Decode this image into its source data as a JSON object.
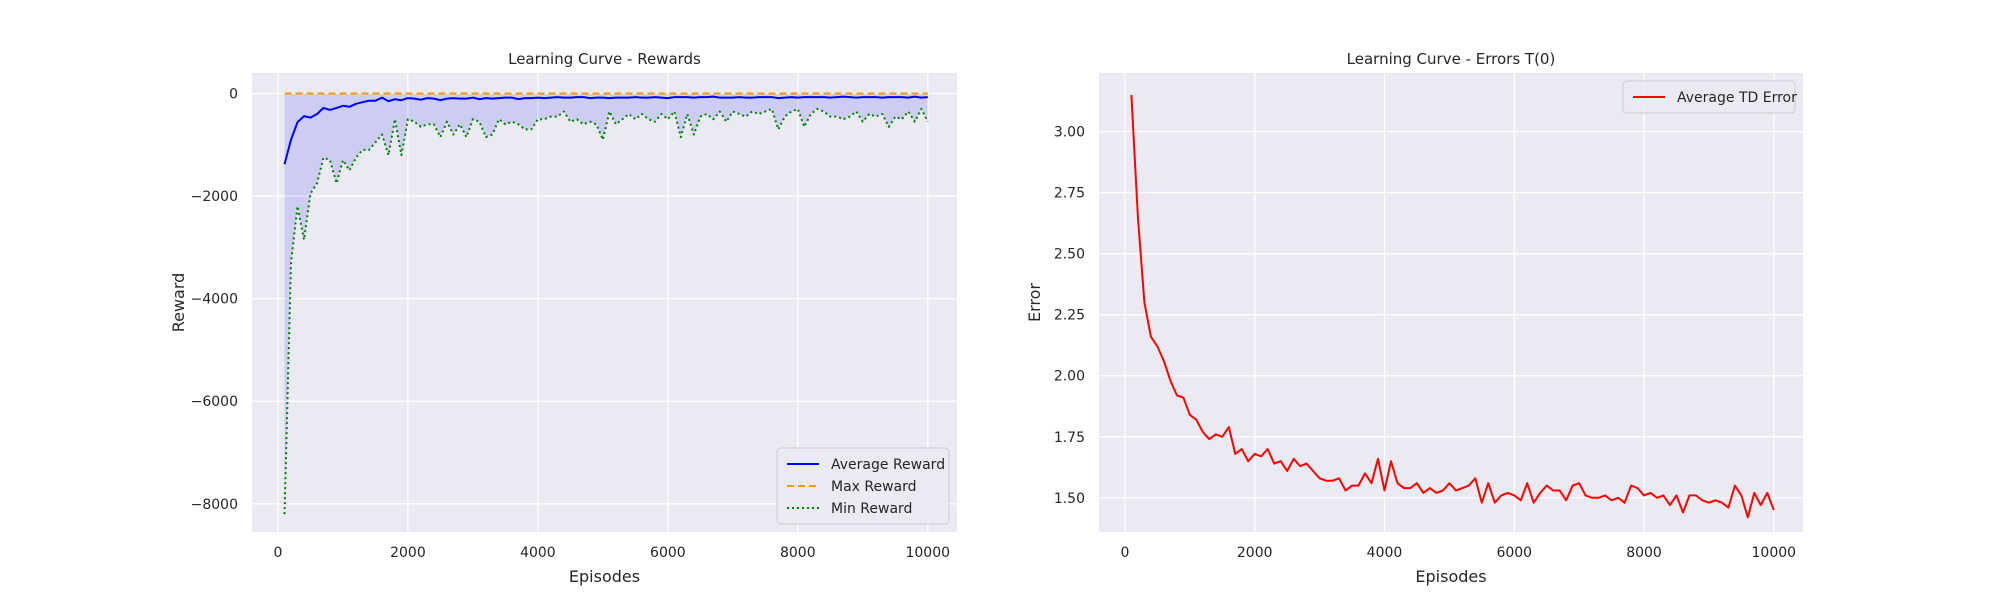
{
  "chart_data": [
    {
      "type": "line",
      "title": "Learning Curve - Rewards",
      "xlabel": "Episodes",
      "ylabel": "Reward",
      "xlim": [
        -400,
        10450
      ],
      "ylim": [
        -8550,
        400
      ],
      "xticks": [
        0,
        2000,
        4000,
        6000,
        8000,
        10000
      ],
      "xtick_labels": [
        "0",
        "2000",
        "4000",
        "6000",
        "8000",
        "10000"
      ],
      "yticks": [
        0,
        -2000,
        -4000,
        -6000,
        -8000
      ],
      "ytick_labels": [
        "0",
        "−2000",
        "−4000",
        "−6000",
        "−8000"
      ],
      "grid": true,
      "legend_position": "lower-right",
      "fill_between": {
        "lower": "Min Reward",
        "upper": "Max Reward",
        "color": "#0000ff",
        "opacity": 0.12
      },
      "x": [
        100,
        200,
        300,
        400,
        500,
        600,
        700,
        800,
        900,
        1000,
        1100,
        1200,
        1300,
        1400,
        1500,
        1600,
        1700,
        1800,
        1900,
        2000,
        2100,
        2200,
        2300,
        2400,
        2500,
        2600,
        2700,
        2800,
        2900,
        3000,
        3100,
        3200,
        3300,
        3400,
        3500,
        3600,
        3700,
        3800,
        3900,
        4000,
        4100,
        4200,
        4300,
        4400,
        4500,
        4600,
        4700,
        4800,
        4900,
        5000,
        5100,
        5200,
        5300,
        5400,
        5500,
        5600,
        5700,
        5800,
        5900,
        6000,
        6100,
        6200,
        6300,
        6400,
        6500,
        6600,
        6700,
        6800,
        6900,
        7000,
        7100,
        7200,
        7300,
        7400,
        7500,
        7600,
        7700,
        7800,
        7900,
        8000,
        8100,
        8200,
        8300,
        8400,
        8500,
        8600,
        8700,
        8800,
        8900,
        9000,
        9100,
        9200,
        9300,
        9400,
        9500,
        9600,
        9700,
        9800,
        9900,
        10000
      ],
      "series": [
        {
          "name": "Average Reward",
          "color": "#0000ff",
          "dash": "solid",
          "values": [
            -1380,
            -900,
            -560,
            -440,
            -470,
            -400,
            -280,
            -320,
            -280,
            -240,
            -260,
            -200,
            -170,
            -140,
            -140,
            -80,
            -150,
            -110,
            -130,
            -90,
            -100,
            -120,
            -90,
            -100,
            -130,
            -100,
            -90,
            -100,
            -100,
            -80,
            -110,
            -90,
            -100,
            -90,
            -80,
            -80,
            -110,
            -90,
            -90,
            -80,
            -90,
            -80,
            -70,
            -80,
            -80,
            -70,
            -70,
            -90,
            -80,
            -80,
            -90,
            -80,
            -80,
            -80,
            -70,
            -80,
            -80,
            -70,
            -80,
            -90,
            -70,
            -70,
            -70,
            -80,
            -70,
            -70,
            -60,
            -80,
            -80,
            -80,
            -70,
            -80,
            -80,
            -70,
            -70,
            -70,
            -90,
            -80,
            -70,
            -80,
            -70,
            -70,
            -70,
            -70,
            -80,
            -70,
            -60,
            -70,
            -80,
            -70,
            -70,
            -70,
            -80,
            -70,
            -70,
            -70,
            -80,
            -60,
            -80,
            -70
          ]
        },
        {
          "name": "Max Reward",
          "color": "#ff9900",
          "dash": "dashed",
          "values": [
            0,
            0,
            0,
            0,
            0,
            0,
            0,
            0,
            0,
            0,
            0,
            0,
            0,
            0,
            0,
            0,
            0,
            0,
            0,
            0,
            0,
            0,
            0,
            0,
            0,
            0,
            0,
            0,
            0,
            0,
            0,
            0,
            0,
            0,
            0,
            0,
            0,
            0,
            0,
            0,
            0,
            0,
            0,
            0,
            0,
            0,
            0,
            0,
            0,
            0,
            0,
            0,
            0,
            0,
            0,
            0,
            0,
            0,
            0,
            0,
            0,
            0,
            0,
            0,
            0,
            0,
            0,
            0,
            0,
            0,
            0,
            0,
            0,
            0,
            0,
            0,
            0,
            0,
            0,
            0,
            0,
            0,
            0,
            0,
            0,
            0,
            0,
            0,
            0,
            0,
            0,
            0,
            0,
            0,
            0,
            0,
            0,
            0,
            0,
            0
          ]
        },
        {
          "name": "Min Reward",
          "color": "#008000",
          "dash": "dotted",
          "values": [
            -8200,
            -3300,
            -2200,
            -2850,
            -1950,
            -1750,
            -1250,
            -1300,
            -1750,
            -1300,
            -1500,
            -1250,
            -1100,
            -1100,
            -950,
            -800,
            -1200,
            -500,
            -1200,
            -500,
            -550,
            -650,
            -600,
            -600,
            -850,
            -550,
            -800,
            -600,
            -850,
            -500,
            -550,
            -850,
            -800,
            -500,
            -600,
            -550,
            -600,
            -700,
            -700,
            -500,
            -500,
            -450,
            -450,
            -350,
            -550,
            -500,
            -600,
            -550,
            -600,
            -900,
            -350,
            -600,
            -500,
            -400,
            -500,
            -400,
            -500,
            -550,
            -400,
            -500,
            -350,
            -850,
            -400,
            -800,
            -450,
            -400,
            -500,
            -350,
            -550,
            -350,
            -400,
            -450,
            -350,
            -400,
            -350,
            -300,
            -700,
            -450,
            -350,
            -300,
            -650,
            -400,
            -300,
            -350,
            -450,
            -450,
            -500,
            -450,
            -350,
            -550,
            -400,
            -450,
            -400,
            -650,
            -450,
            -500,
            -350,
            -550,
            -300,
            -550
          ]
        }
      ]
    },
    {
      "type": "line",
      "title": "Learning Curve - Errors T(0)",
      "xlabel": "Episodes",
      "ylabel": "Error",
      "xlim": [
        -400,
        10450
      ],
      "ylim": [
        1.36,
        3.24
      ],
      "xticks": [
        0,
        2000,
        4000,
        6000,
        8000,
        10000
      ],
      "xtick_labels": [
        "0",
        "2000",
        "4000",
        "6000",
        "8000",
        "10000"
      ],
      "yticks": [
        1.5,
        1.75,
        2.0,
        2.25,
        2.5,
        2.75,
        3.0
      ],
      "ytick_labels": [
        "1.50",
        "1.75",
        "2.00",
        "2.25",
        "2.50",
        "2.75",
        "3.00"
      ],
      "grid": true,
      "legend_position": "top-right",
      "x": [
        100,
        200,
        300,
        400,
        500,
        600,
        700,
        800,
        900,
        1000,
        1100,
        1200,
        1300,
        1400,
        1500,
        1600,
        1700,
        1800,
        1900,
        2000,
        2100,
        2200,
        2300,
        2400,
        2500,
        2600,
        2700,
        2800,
        2900,
        3000,
        3100,
        3200,
        3300,
        3400,
        3500,
        3600,
        3700,
        3800,
        3900,
        4000,
        4100,
        4200,
        4300,
        4400,
        4500,
        4600,
        4700,
        4800,
        4900,
        5000,
        5100,
        5200,
        5300,
        5400,
        5500,
        5600,
        5700,
        5800,
        5900,
        6000,
        6100,
        6200,
        6300,
        6400,
        6500,
        6600,
        6700,
        6800,
        6900,
        7000,
        7100,
        7200,
        7300,
        7400,
        7500,
        7600,
        7700,
        7800,
        7900,
        8000,
        8100,
        8200,
        8300,
        8400,
        8500,
        8600,
        8700,
        8800,
        8900,
        9000,
        9100,
        9200,
        9300,
        9400,
        9500,
        9600,
        9700,
        9800,
        9900,
        10000
      ],
      "series": [
        {
          "name": "Average TD Error",
          "color": "#ff0000",
          "dash": "solid",
          "values": [
            3.15,
            2.65,
            2.3,
            2.16,
            2.12,
            2.06,
            1.98,
            1.92,
            1.91,
            1.84,
            1.82,
            1.77,
            1.74,
            1.76,
            1.75,
            1.79,
            1.68,
            1.7,
            1.65,
            1.68,
            1.67,
            1.7,
            1.64,
            1.65,
            1.61,
            1.66,
            1.63,
            1.64,
            1.61,
            1.58,
            1.57,
            1.57,
            1.58,
            1.53,
            1.55,
            1.55,
            1.6,
            1.56,
            1.66,
            1.53,
            1.65,
            1.56,
            1.54,
            1.54,
            1.56,
            1.52,
            1.54,
            1.52,
            1.53,
            1.56,
            1.53,
            1.54,
            1.55,
            1.58,
            1.48,
            1.56,
            1.48,
            1.51,
            1.52,
            1.51,
            1.49,
            1.56,
            1.48,
            1.52,
            1.55,
            1.53,
            1.53,
            1.49,
            1.55,
            1.56,
            1.51,
            1.5,
            1.5,
            1.51,
            1.49,
            1.5,
            1.48,
            1.55,
            1.54,
            1.51,
            1.52,
            1.5,
            1.51,
            1.47,
            1.51,
            1.44,
            1.51,
            1.51,
            1.49,
            1.48,
            1.49,
            1.48,
            1.46,
            1.55,
            1.51,
            1.42,
            1.52,
            1.47,
            1.52,
            1.45
          ]
        }
      ]
    }
  ]
}
